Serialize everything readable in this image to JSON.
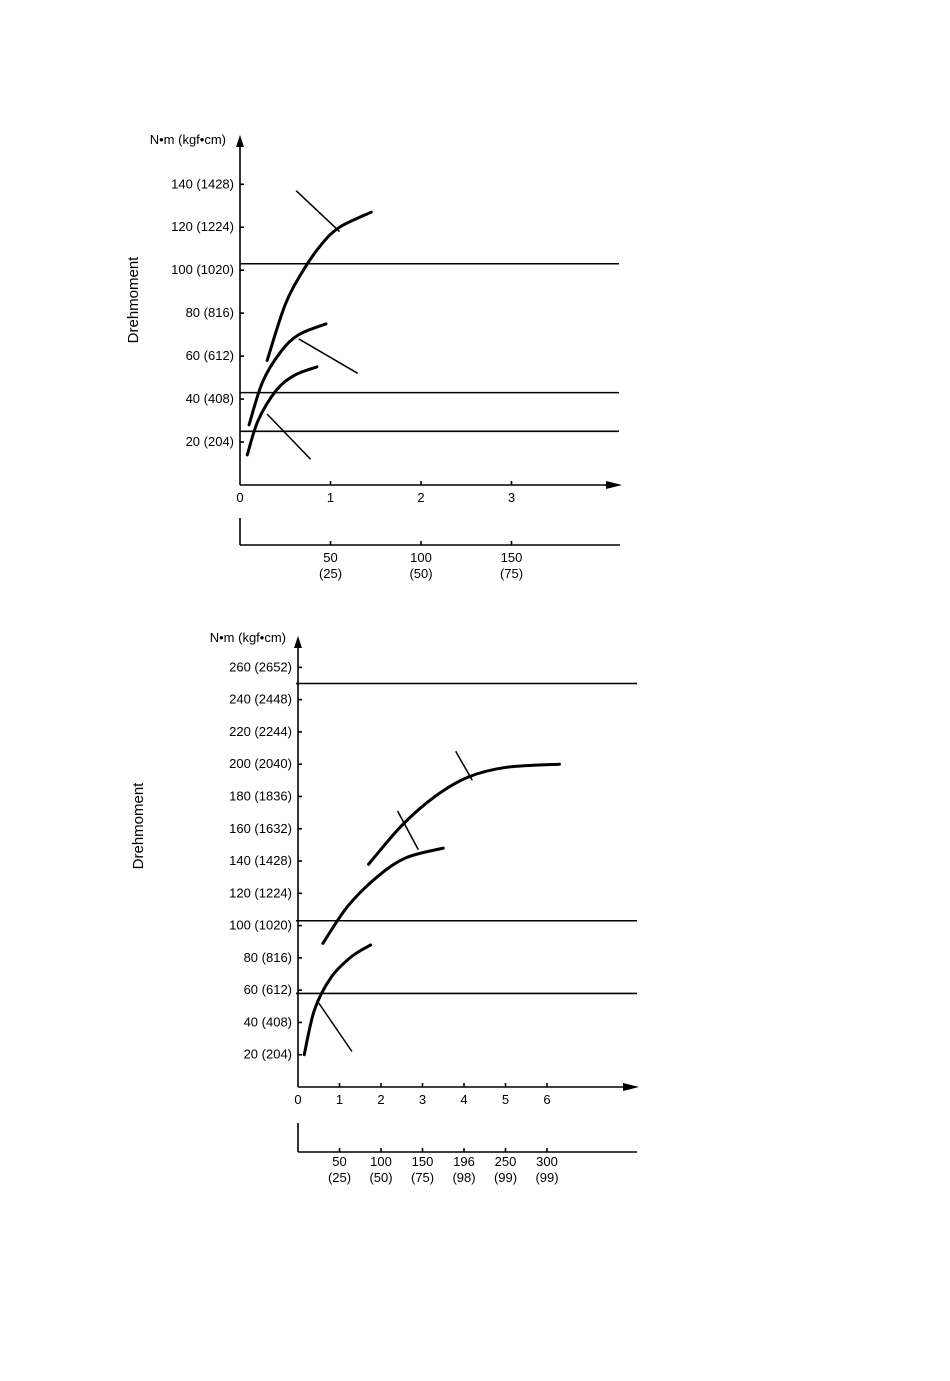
{
  "chart_data": [
    {
      "type": "line",
      "title": "",
      "ylabel": "Drehmoment",
      "yunit": "N•m (kgf•cm)",
      "xlabel": "",
      "ylim": [
        0,
        160
      ],
      "xlim": [
        0,
        4.2
      ],
      "y_ticks": [
        {
          "value": 20,
          "label": "20 (204)"
        },
        {
          "value": 40,
          "label": "40 (408)"
        },
        {
          "value": 60,
          "label": "60 (612)"
        },
        {
          "value": 80,
          "label": "80 (816)"
        },
        {
          "value": 100,
          "label": "100 (1020)"
        },
        {
          "value": 120,
          "label": "120 (1224)"
        },
        {
          "value": 140,
          "label": "140 (1428)"
        }
      ],
      "x_ticks": [
        {
          "value": 0,
          "label": "0"
        },
        {
          "value": 1,
          "label": "1"
        },
        {
          "value": 2,
          "label": "2"
        },
        {
          "value": 3,
          "label": "3"
        }
      ],
      "secondary_x_ticks": [
        {
          "value": 1,
          "label": "50",
          "sub": "(25)"
        },
        {
          "value": 2,
          "label": "100",
          "sub": "(50)"
        },
        {
          "value": 3,
          "label": "150",
          "sub": "(75)"
        }
      ],
      "reference_lines": [
        103,
        43,
        25
      ],
      "series": [
        {
          "x": [
            0.3,
            0.5,
            0.7,
            0.9,
            1.1,
            1.45
          ],
          "y": [
            58,
            84,
            100,
            112,
            120,
            127
          ],
          "leader": [
            [
              0.62,
              137
            ],
            [
              1.1,
              118
            ]
          ]
        },
        {
          "x": [
            0.1,
            0.25,
            0.45,
            0.65,
            0.95
          ],
          "y": [
            28,
            48,
            62,
            70,
            75
          ],
          "leader": [
            [
              0.65,
              68
            ],
            [
              1.3,
              52
            ]
          ]
        },
        {
          "x": [
            0.08,
            0.2,
            0.4,
            0.6,
            0.85
          ],
          "y": [
            14,
            30,
            44,
            51,
            55
          ],
          "leader": [
            [
              0.3,
              33
            ],
            [
              0.78,
              12
            ]
          ]
        }
      ]
    },
    {
      "type": "line",
      "title": "",
      "ylabel": "Drehmoment",
      "yunit": "N•m (kgf•cm)",
      "xlabel": "",
      "ylim": [
        0,
        280
      ],
      "xlim": [
        0,
        8.1
      ],
      "y_ticks": [
        {
          "value": 20,
          "label": "20 (204)"
        },
        {
          "value": 40,
          "label": "40 (408)"
        },
        {
          "value": 60,
          "label": "60 (612)"
        },
        {
          "value": 80,
          "label": "80 (816)"
        },
        {
          "value": 100,
          "label": "100 (1020)"
        },
        {
          "value": 120,
          "label": "120 (1224)"
        },
        {
          "value": 140,
          "label": "140 (1428)"
        },
        {
          "value": 160,
          "label": "160 (1632)"
        },
        {
          "value": 180,
          "label": "180 (1836)"
        },
        {
          "value": 200,
          "label": "200 (2040)"
        },
        {
          "value": 220,
          "label": "220 (2244)"
        },
        {
          "value": 240,
          "label": "240 (2448)"
        },
        {
          "value": 260,
          "label": "260 (2652)"
        }
      ],
      "x_ticks": [
        {
          "value": 0,
          "label": "0"
        },
        {
          "value": 1,
          "label": "1"
        },
        {
          "value": 2,
          "label": "2"
        },
        {
          "value": 3,
          "label": "3"
        },
        {
          "value": 4,
          "label": "4"
        },
        {
          "value": 5,
          "label": "5"
        },
        {
          "value": 6,
          "label": "6"
        }
      ],
      "secondary_x_ticks": [
        {
          "value": 1,
          "label": "50",
          "sub": "(25)"
        },
        {
          "value": 2,
          "label": "100",
          "sub": "(50)"
        },
        {
          "value": 3,
          "label": "150",
          "sub": "(75)"
        },
        {
          "value": 4,
          "label": "196",
          "sub": "(98)"
        },
        {
          "value": 5,
          "label": "250",
          "sub": "(99)"
        },
        {
          "value": 6,
          "label": "300",
          "sub": "(99)"
        }
      ],
      "reference_lines": [
        250,
        103,
        58
      ],
      "series": [
        {
          "x": [
            1.7,
            2.5,
            3.3,
            4.1,
            5.0,
            6.3
          ],
          "y": [
            138,
            162,
            180,
            192,
            198,
            200
          ],
          "leader": [
            [
              3.8,
              208
            ],
            [
              4.2,
              190
            ]
          ]
        },
        {
          "x": [
            0.6,
            1.2,
            1.9,
            2.6,
            3.5
          ],
          "y": [
            89,
            112,
            130,
            142,
            148
          ],
          "leader": [
            [
              2.4,
              171
            ],
            [
              2.9,
              147
            ]
          ]
        },
        {
          "x": [
            0.15,
            0.4,
            0.8,
            1.3,
            1.75
          ],
          "y": [
            20,
            48,
            68,
            81,
            88
          ],
          "leader": [
            [
              0.5,
              52
            ],
            [
              1.3,
              22
            ]
          ]
        }
      ]
    }
  ]
}
